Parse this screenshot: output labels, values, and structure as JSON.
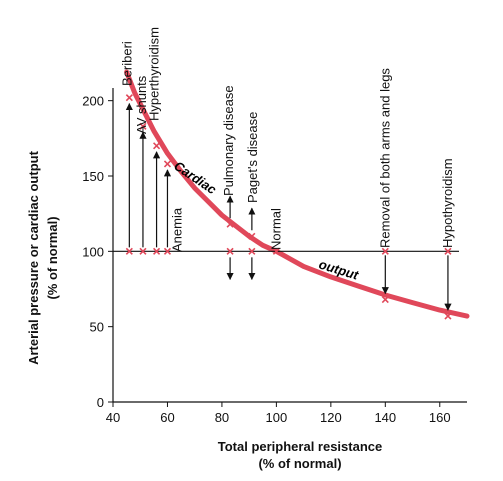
{
  "chart_data": {
    "type": "line",
    "xlabel": "Total peripheral resistance",
    "xlabel_unit": "(% of normal)",
    "ylabel": "Arterial pressure or cardiac output",
    "ylabel_unit": "(% of normal)",
    "xlim": [
      40,
      170
    ],
    "ylim": [
      0,
      225
    ],
    "x_ticks": [
      40,
      60,
      80,
      100,
      120,
      140,
      160
    ],
    "y_ticks": [
      0,
      50,
      100,
      150,
      200
    ],
    "reference_line": {
      "y": 100
    },
    "curve": {
      "name_parts": [
        "Cardiac",
        "output"
      ],
      "color": "#e0485a",
      "x": [
        45,
        48,
        50,
        55,
        60,
        65,
        70,
        75,
        80,
        85,
        90,
        95,
        100,
        110,
        120,
        130,
        140,
        150,
        160,
        170
      ],
      "y": [
        219,
        205,
        198,
        180,
        165,
        153,
        142,
        133,
        124,
        117,
        110,
        104,
        100,
        90,
        83,
        77,
        71,
        66,
        61,
        57
      ]
    },
    "conditions": [
      {
        "label": "Beriberi",
        "x": 46,
        "y": 202,
        "arrow": "up"
      },
      {
        "label": "AV shunts",
        "x": 51,
        "y": 183,
        "arrow": "up"
      },
      {
        "label": "Hyperthyroidism",
        "x": 56,
        "y": 170,
        "arrow": "up"
      },
      {
        "label": "Anemia",
        "x": 60,
        "y": 158,
        "arrow": "up"
      },
      {
        "label": "Pulmonary disease",
        "x": 83,
        "y": 118,
        "arrow": "both"
      },
      {
        "label": "Paget's disease",
        "x": 91,
        "y": 110,
        "arrow": "both"
      },
      {
        "label": "Normal",
        "x": 100,
        "y": 100,
        "arrow": "none"
      },
      {
        "label": "Removal of both arms and legs",
        "x": 140,
        "y": 68,
        "arrow": "down"
      },
      {
        "label": "Hypothyroidism",
        "x": 163,
        "y": 57,
        "arrow": "down"
      }
    ]
  }
}
